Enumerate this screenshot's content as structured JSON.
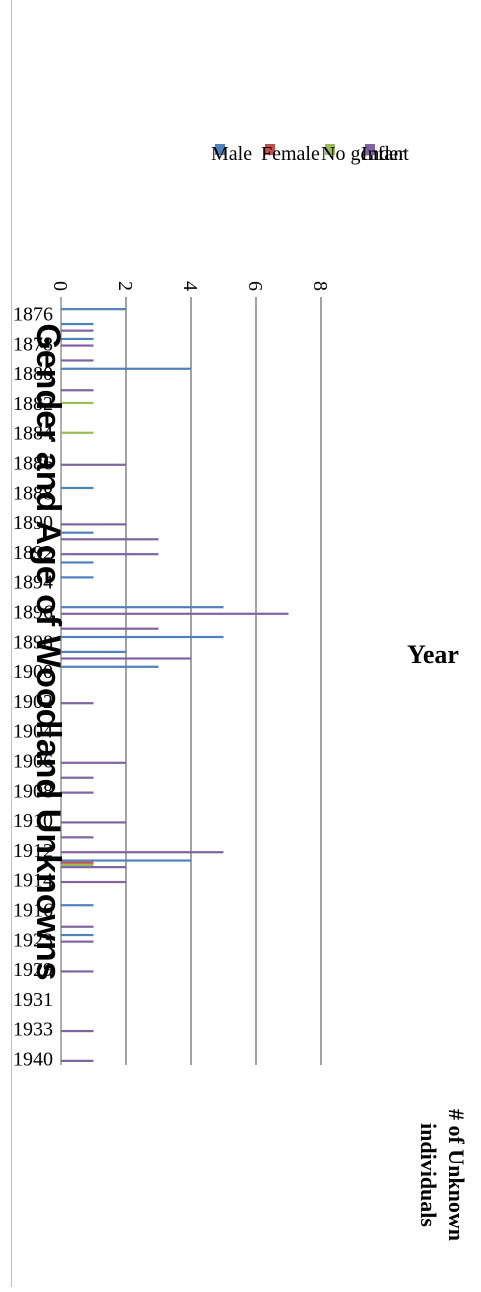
{
  "chart_data": {
    "type": "bar",
    "title": "Gender and Age of Woodland Unknowns",
    "xlabel": "Year",
    "ylabel": "# of Unknown individuals",
    "ylim": [
      0,
      8
    ],
    "yticks": [
      "0",
      "2",
      "4",
      "6",
      "8"
    ],
    "grid": true,
    "legend_position": "top-right",
    "categories": [
      "1876",
      "",
      "1878",
      "",
      "1880",
      "",
      "1882",
      "",
      "1884",
      "",
      "1886",
      "",
      "1888",
      "",
      "1890",
      "",
      "1892",
      "",
      "1894",
      "",
      "1896",
      "",
      "1898",
      "",
      "1900",
      "",
      "1902",
      "",
      "1904",
      "",
      "1906",
      "",
      "1908",
      "",
      "1910",
      "",
      "1912",
      "",
      "1914",
      "",
      "1916",
      "",
      "1923",
      "",
      "1929",
      "",
      "1931",
      "",
      "1933",
      "",
      "1940"
    ],
    "series": [
      {
        "name": "Male",
        "color": "#4f81bd",
        "values": [
          2,
          1,
          1,
          0,
          4,
          0,
          0,
          0,
          0,
          0,
          0,
          0,
          1,
          0,
          0,
          1,
          0,
          1,
          1,
          0,
          5,
          0,
          5,
          2,
          3,
          0,
          0,
          0,
          0,
          0,
          0,
          0,
          0,
          0,
          0,
          0,
          0,
          4,
          0,
          0,
          1,
          0,
          1,
          0,
          0,
          0,
          0,
          0,
          0,
          0,
          0
        ]
      },
      {
        "name": "Female",
        "color": "#c0504d",
        "values": [
          0,
          0,
          0,
          0,
          0,
          0,
          0,
          0,
          0,
          0,
          0,
          0,
          0,
          0,
          0,
          0,
          0,
          0,
          0,
          0,
          0,
          0,
          0,
          0,
          0,
          0,
          0,
          0,
          0,
          0,
          0,
          0,
          0,
          0,
          0,
          0,
          0,
          1,
          0,
          0,
          0,
          0,
          0,
          0,
          0,
          0,
          0,
          0,
          0,
          0,
          0
        ]
      },
      {
        "name": "No gender",
        "color": "#9bbb59",
        "values": [
          0,
          0,
          0,
          0,
          0,
          0,
          1,
          0,
          1,
          0,
          0,
          0,
          0,
          0,
          0,
          0,
          0,
          0,
          0,
          0,
          0,
          0,
          0,
          0,
          0,
          0,
          0,
          0,
          0,
          0,
          0,
          0,
          0,
          0,
          0,
          0,
          0,
          1,
          0,
          0,
          0,
          0,
          0,
          0,
          0,
          0,
          0,
          0,
          0,
          0,
          0
        ]
      },
      {
        "name": "Infant",
        "color": "#8064a2",
        "values": [
          0,
          1,
          1,
          1,
          0,
          1,
          0,
          0,
          0,
          0,
          2,
          0,
          0,
          0,
          2,
          3,
          3,
          0,
          0,
          0,
          7,
          3,
          0,
          4,
          0,
          0,
          1,
          0,
          0,
          0,
          2,
          1,
          1,
          0,
          2,
          1,
          5,
          2,
          2,
          0,
          0,
          1,
          1,
          0,
          1,
          0,
          0,
          0,
          1,
          0,
          1
        ]
      }
    ]
  }
}
